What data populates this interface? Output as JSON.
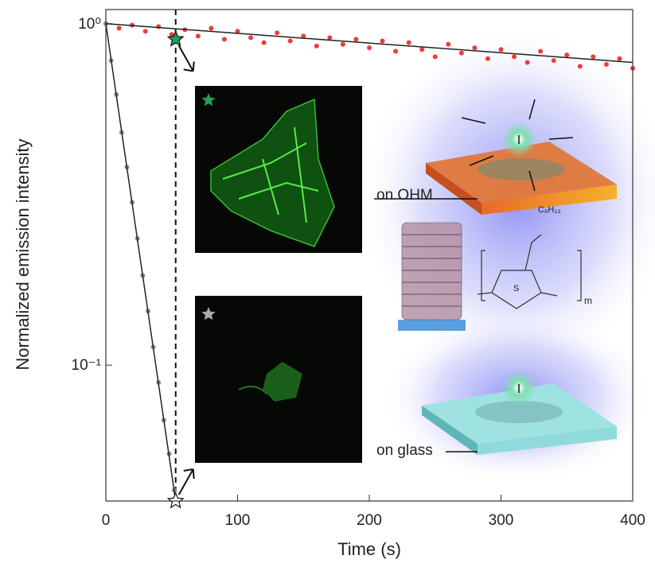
{
  "chart_data": {
    "type": "scatter",
    "xlabel": "Time (s)",
    "ylabel": "Normalized emission intensity",
    "xlim": [
      0,
      400
    ],
    "ylim": [
      0.04,
      1.1
    ],
    "log_y": true,
    "xticks": [
      0,
      100,
      200,
      300,
      400
    ],
    "yticks": [
      {
        "value": 1,
        "label": "10⁰"
      },
      {
        "value": 0.1,
        "label": "10⁻¹"
      }
    ],
    "series": [
      {
        "style": "points",
        "color": "#ee3b3b",
        "x": [
          0,
          10,
          20,
          30,
          40,
          50,
          60,
          70,
          80,
          90,
          100,
          110,
          120,
          130,
          140,
          150,
          160,
          170,
          180,
          190,
          200,
          210,
          220,
          230,
          240,
          250,
          260,
          270,
          280,
          290,
          300,
          310,
          320,
          330,
          340,
          350,
          360,
          370,
          380,
          390,
          400
        ],
        "values": [
          1.0,
          0.97,
          0.99,
          0.95,
          0.98,
          0.93,
          0.96,
          0.92,
          0.97,
          0.9,
          0.95,
          0.91,
          0.88,
          0.94,
          0.89,
          0.92,
          0.86,
          0.91,
          0.87,
          0.9,
          0.85,
          0.89,
          0.83,
          0.88,
          0.84,
          0.8,
          0.87,
          0.82,
          0.85,
          0.79,
          0.84,
          0.8,
          0.77,
          0.83,
          0.78,
          0.81,
          0.75,
          0.8,
          0.76,
          0.79,
          0.74
        ]
      },
      {
        "style": "points",
        "color": "#8c8c8c",
        "x": [
          0,
          4,
          8,
          12,
          16,
          20,
          24,
          28,
          32,
          36,
          40,
          44,
          48,
          52
        ],
        "values": [
          1.0,
          0.78,
          0.62,
          0.48,
          0.38,
          0.3,
          0.235,
          0.183,
          0.144,
          0.113,
          0.089,
          0.069,
          0.055,
          0.043
        ]
      },
      {
        "style": "line",
        "color": "#222222",
        "x": [
          0,
          400
        ],
        "values": [
          1.0,
          0.77
        ]
      },
      {
        "style": "line",
        "color": "#222222",
        "x": [
          0,
          53
        ],
        "values": [
          1.0,
          0.04
        ]
      }
    ],
    "marker_x": 53,
    "stars": [
      {
        "x": 53,
        "y": 0.9,
        "color": "#1fa05a"
      },
      {
        "x": 53,
        "y": 0.04,
        "color": "#ffffff"
      }
    ],
    "annotations": {
      "ohm": "on OHM",
      "glass": "on glass",
      "side_chain": "C₆H₁₃",
      "sulfur": "S",
      "repeat": "m"
    }
  }
}
